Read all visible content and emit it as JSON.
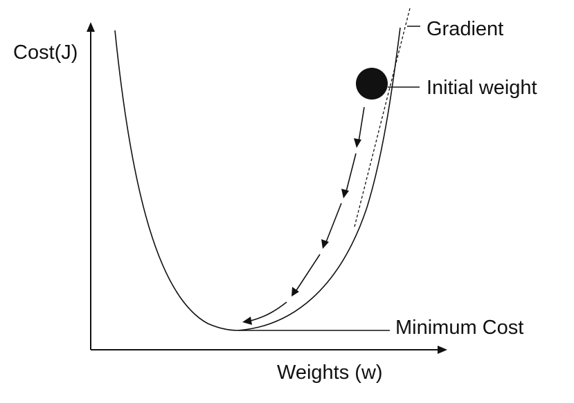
{
  "labels": {
    "y_axis": "Cost(J)",
    "x_axis": "Weights (w)",
    "gradient": "Gradient",
    "initial_weight": "Initial weight",
    "minimum_cost": "Minimum Cost"
  },
  "colors": {
    "ink": "#111111",
    "background": "#ffffff"
  }
}
